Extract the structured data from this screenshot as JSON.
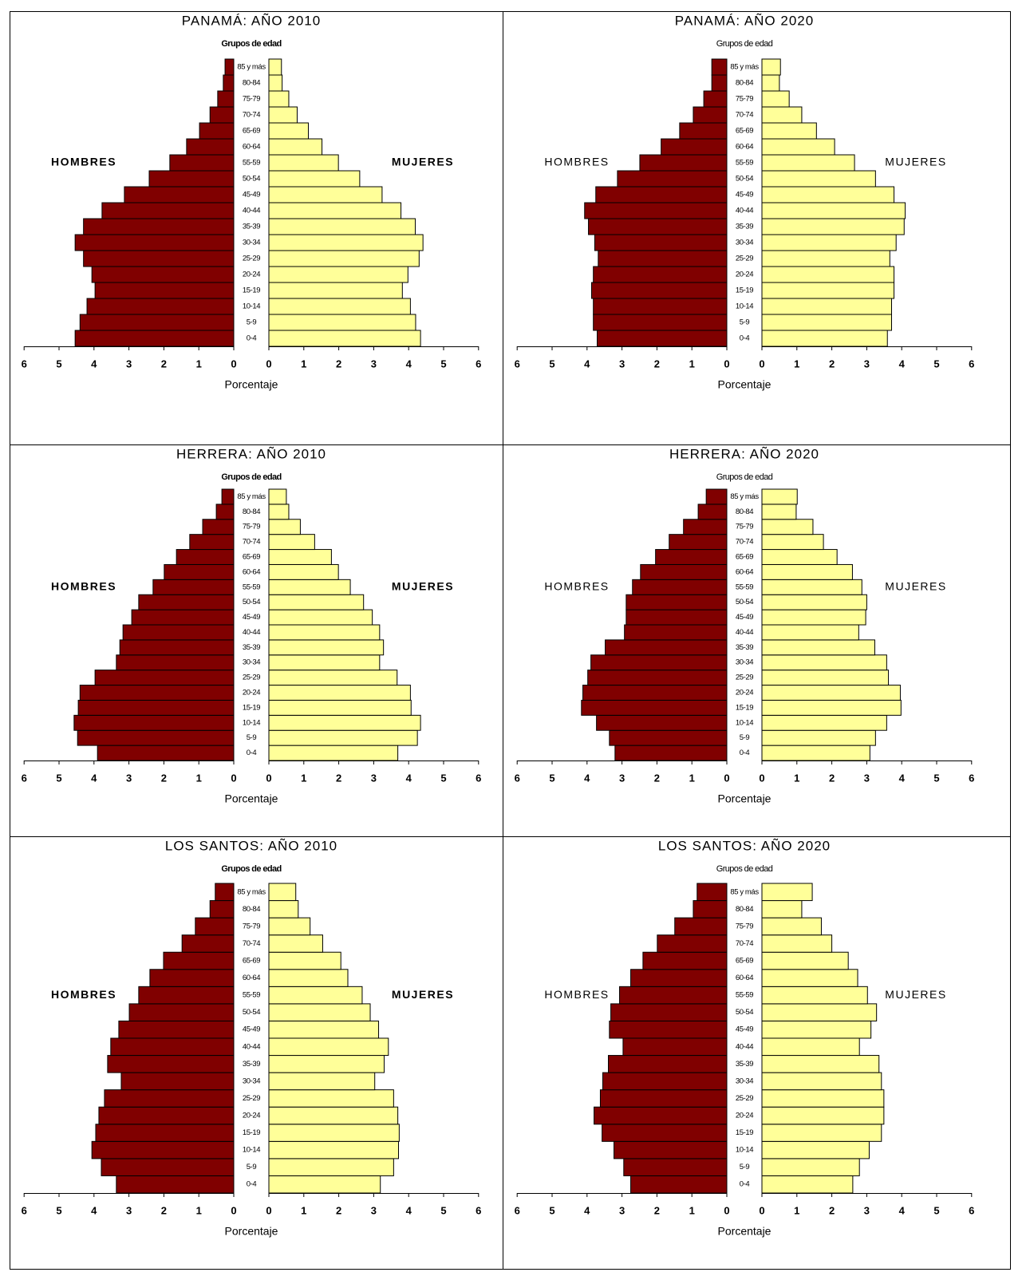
{
  "chart_data": [
    {
      "type": "pyramid",
      "title": "PANAMÁ: AÑO 2010",
      "ylabel": "Grupos de edad",
      "xlabel": "Porcentaje",
      "categories": [
        "0-4",
        "5-9",
        "10-14",
        "15-19",
        "20-24",
        "25-29",
        "30-34",
        "35-39",
        "40-44",
        "45-49",
        "50-54",
        "55-59",
        "60-64",
        "65-69",
        "70-74",
        "75-79",
        "80-84",
        "85 y más"
      ],
      "series": [
        {
          "name": "HOMBRES",
          "color": "#800000",
          "values": [
            4.54,
            4.4,
            4.2,
            3.97,
            4.06,
            4.3,
            4.54,
            4.3,
            3.77,
            3.13,
            2.42,
            1.83,
            1.35,
            0.98,
            0.68,
            0.46,
            0.3,
            0.25
          ]
        },
        {
          "name": "MUJERES",
          "color": "#ffff99",
          "values": [
            4.34,
            4.2,
            4.05,
            3.82,
            3.98,
            4.3,
            4.41,
            4.19,
            3.78,
            3.24,
            2.6,
            1.99,
            1.52,
            1.13,
            0.81,
            0.57,
            0.38,
            0.36
          ]
        }
      ],
      "xlim": [
        0,
        6
      ],
      "xticks": [
        0,
        1,
        2,
        3,
        4,
        5,
        6
      ]
    },
    {
      "type": "pyramid",
      "title": "PANAMÁ: AÑO 2020",
      "ylabel": "Grupos de edad",
      "xlabel": "Porcentaje",
      "categories": [
        "0-4",
        "5-9",
        "10-14",
        "15-19",
        "20-24",
        "25-29",
        "30-34",
        "35-39",
        "40-44",
        "45-49",
        "50-54",
        "55-59",
        "60-64",
        "65-69",
        "70-74",
        "75-79",
        "80-84",
        "85 y más"
      ],
      "series": [
        {
          "name": "HOMBRES",
          "color": "#800000",
          "values": [
            3.71,
            3.82,
            3.82,
            3.87,
            3.82,
            3.68,
            3.78,
            3.96,
            4.07,
            3.75,
            3.13,
            2.49,
            1.88,
            1.35,
            0.96,
            0.66,
            0.43,
            0.43
          ]
        },
        {
          "name": "MUJERES",
          "color": "#ffff99",
          "values": [
            3.59,
            3.71,
            3.71,
            3.78,
            3.78,
            3.66,
            3.84,
            4.07,
            4.1,
            3.78,
            3.25,
            2.65,
            2.08,
            1.56,
            1.14,
            0.78,
            0.5,
            0.53
          ]
        }
      ],
      "xlim": [
        0,
        6
      ],
      "xticks": [
        0,
        1,
        2,
        3,
        4,
        5,
        6
      ]
    },
    {
      "type": "pyramid",
      "title": "HERRERA: AÑO 2010",
      "ylabel": "Grupos de edad",
      "xlabel": "Porcentaje",
      "categories": [
        "0-4",
        "5-9",
        "10-14",
        "15-19",
        "20-24",
        "25-29",
        "30-34",
        "35-39",
        "40-44",
        "45-49",
        "50-54",
        "55-59",
        "60-64",
        "65-69",
        "70-74",
        "75-79",
        "80-84",
        "85 y más"
      ],
      "series": [
        {
          "name": "HOMBRES",
          "color": "#800000",
          "values": [
            3.9,
            4.47,
            4.57,
            4.45,
            4.4,
            3.97,
            3.36,
            3.26,
            3.17,
            2.92,
            2.72,
            2.31,
            1.99,
            1.64,
            1.26,
            0.89,
            0.5,
            0.34
          ]
        },
        {
          "name": "MUJERES",
          "color": "#ffff99",
          "values": [
            3.69,
            4.25,
            4.34,
            4.07,
            4.05,
            3.67,
            3.17,
            3.28,
            3.17,
            2.96,
            2.71,
            2.33,
            1.99,
            1.79,
            1.31,
            0.9,
            0.57,
            0.5
          ]
        }
      ],
      "xlim": [
        0,
        6
      ],
      "xticks": [
        0,
        1,
        2,
        3,
        4,
        5,
        6
      ]
    },
    {
      "type": "pyramid",
      "title": "HERRERA: AÑO 2020",
      "ylabel": "Grupos de edad",
      "xlabel": "Porcentaje",
      "categories": [
        "0-4",
        "5-9",
        "10-14",
        "15-19",
        "20-24",
        "25-29",
        "30-34",
        "35-39",
        "40-44",
        "45-49",
        "50-54",
        "55-59",
        "60-64",
        "65-69",
        "70-74",
        "75-79",
        "80-84",
        "85 y más"
      ],
      "series": [
        {
          "name": "HOMBRES",
          "color": "#800000",
          "values": [
            3.2,
            3.36,
            3.73,
            4.16,
            4.12,
            3.98,
            3.89,
            3.48,
            2.93,
            2.88,
            2.88,
            2.7,
            2.47,
            2.04,
            1.65,
            1.24,
            0.82,
            0.59
          ]
        },
        {
          "name": "MUJERES",
          "color": "#ffff99",
          "values": [
            3.09,
            3.25,
            3.57,
            3.98,
            3.96,
            3.62,
            3.57,
            3.23,
            2.77,
            2.97,
            3.0,
            2.86,
            2.59,
            2.15,
            1.76,
            1.46,
            0.98,
            1.01
          ]
        }
      ],
      "xlim": [
        0,
        6
      ],
      "xticks": [
        0,
        1,
        2,
        3,
        4,
        5,
        6
      ]
    },
    {
      "type": "pyramid",
      "title": "LOS SANTOS: AÑO 2010",
      "ylabel": "Grupos de edad",
      "xlabel": "Porcentaje",
      "categories": [
        "0-4",
        "5-9",
        "10-14",
        "15-19",
        "20-24",
        "25-29",
        "30-34",
        "35-39",
        "40-44",
        "45-49",
        "50-54",
        "55-59",
        "60-64",
        "65-69",
        "70-74",
        "75-79",
        "80-84",
        "85 y más"
      ],
      "series": [
        {
          "name": "HOMBRES",
          "color": "#800000",
          "values": [
            3.36,
            3.79,
            4.06,
            3.95,
            3.86,
            3.7,
            3.22,
            3.61,
            3.52,
            3.29,
            2.99,
            2.72,
            2.4,
            2.01,
            1.48,
            1.1,
            0.68,
            0.53
          ]
        },
        {
          "name": "MUJERES",
          "color": "#ffff99",
          "values": [
            3.19,
            3.57,
            3.71,
            3.73,
            3.69,
            3.57,
            3.03,
            3.3,
            3.42,
            3.14,
            2.9,
            2.67,
            2.26,
            2.06,
            1.54,
            1.18,
            0.84,
            0.77
          ]
        }
      ],
      "xlim": [
        0,
        6
      ],
      "xticks": [
        0,
        1,
        2,
        3,
        4,
        5,
        6
      ]
    },
    {
      "type": "pyramid",
      "title": "LOS SANTOS: AÑO 2020",
      "ylabel": "Grupos de edad",
      "xlabel": "Porcentaje",
      "categories": [
        "0-4",
        "5-9",
        "10-14",
        "15-19",
        "20-24",
        "25-29",
        "30-34",
        "35-39",
        "40-44",
        "45-49",
        "50-54",
        "55-59",
        "60-64",
        "65-69",
        "70-74",
        "75-79",
        "80-84",
        "85 y más"
      ],
      "series": [
        {
          "name": "HOMBRES",
          "color": "#800000",
          "values": [
            2.75,
            2.95,
            3.23,
            3.57,
            3.8,
            3.62,
            3.55,
            3.39,
            2.97,
            3.36,
            3.32,
            3.07,
            2.75,
            2.4,
            1.99,
            1.49,
            0.96,
            0.85
          ]
        },
        {
          "name": "MUJERES",
          "color": "#ffff99",
          "values": [
            2.6,
            2.79,
            3.07,
            3.42,
            3.49,
            3.49,
            3.42,
            3.35,
            2.79,
            3.12,
            3.28,
            3.02,
            2.74,
            2.47,
            2.0,
            1.7,
            1.14,
            1.44
          ]
        }
      ],
      "xlim": [
        0,
        6
      ],
      "xticks": [
        0,
        1,
        2,
        3,
        4,
        5,
        6
      ]
    }
  ]
}
